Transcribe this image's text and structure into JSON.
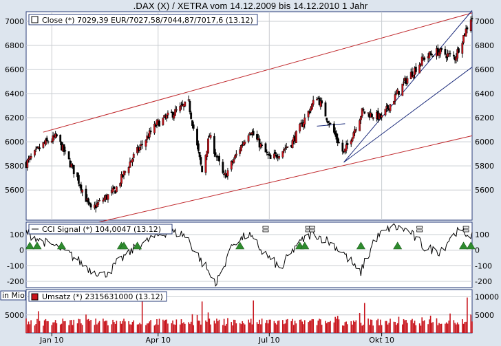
{
  "title": ".DAX (X) / XETRA vom 14.12.2009 bis 14.12.2010 1 Jahr",
  "colors": {
    "background": "#dde5ee",
    "panel": "#ffffff",
    "grid": "#c8ccd0",
    "frame": "#2a3d7a",
    "bull": "#c8141c",
    "bear": "#000000",
    "redline": "#c0282c",
    "blueline": "#1a2a7a",
    "signal": "#2e8b2e",
    "volume": "#c8141c"
  },
  "price_panel": {
    "legend": "Close (*) 7029,39 EUR/7027,58/7044,87/7017,6 (13.12)",
    "y_ticks": [
      "7000",
      "6800",
      "6600",
      "6400",
      "6200",
      "6000",
      "5800",
      "5600"
    ]
  },
  "cci_panel": {
    "legend": "CCI Signal (*) 104,0047 (13.12)",
    "y_ticks_left": [
      "100",
      "0",
      "-100",
      "-200"
    ],
    "y_ticks_right": [
      "100",
      "0",
      "-100",
      "-200"
    ]
  },
  "volume_panel": {
    "legend": "Umsatz (*) 2315631000 (13.12)",
    "unit_label": "in Mio",
    "y_ticks_left": [
      "10000",
      "5000"
    ],
    "y_ticks_right": [
      "10000",
      "5000"
    ]
  },
  "x_ticks": [
    "Jan 10",
    "Apr 10",
    "Jul 10",
    "Okt 10"
  ],
  "chart_data": [
    {
      "type": "candlestick",
      "name": "Close (*)",
      "title": ".DAX (X) / XETRA vom 14.12.2009 bis 14.12.2010 1 Jahr",
      "ylim": [
        5350,
        7080
      ],
      "x_range": [
        "2009-12-14",
        "2010-12-14"
      ],
      "close_path": [
        [
          "2009-12-14",
          5820
        ],
        [
          "2009-12-28",
          5980
        ],
        [
          "2010-01-08",
          6040
        ],
        [
          "2010-01-25",
          5700
        ],
        [
          "2010-02-05",
          5430
        ],
        [
          "2010-02-10",
          5480
        ],
        [
          "2010-02-25",
          5600
        ],
        [
          "2010-03-10",
          5850
        ],
        [
          "2010-03-31",
          6150
        ],
        [
          "2010-04-26",
          6320
        ],
        [
          "2010-05-07",
          5750
        ],
        [
          "2010-05-13",
          6050
        ],
        [
          "2010-05-25",
          5700
        ],
        [
          "2010-06-15",
          6100
        ],
        [
          "2010-07-02",
          5850
        ],
        [
          "2010-07-20",
          6000
        ],
        [
          "2010-08-09",
          6380
        ],
        [
          "2010-08-31",
          5900
        ],
        [
          "2010-09-15",
          6250
        ],
        [
          "2010-10-01",
          6200
        ],
        [
          "2010-10-20",
          6500
        ],
        [
          "2010-11-05",
          6700
        ],
        [
          "2010-11-16",
          6750
        ],
        [
          "2010-11-30",
          6700
        ],
        [
          "2010-12-13",
          7030
        ]
      ],
      "trendlines": [
        {
          "color": "red",
          "from": [
            "2009-12-28",
            6080
          ],
          "to": [
            "2010-12-14",
            7070
          ]
        },
        {
          "color": "red",
          "from": [
            "2010-02-10",
            5330
          ],
          "to": [
            "2010-12-14",
            6050
          ]
        },
        {
          "color": "blue",
          "from": [
            "2010-08-31",
            5830
          ],
          "to": [
            "2010-12-14",
            7090
          ]
        },
        {
          "color": "blue",
          "from": [
            "2010-08-31",
            5830
          ],
          "to": [
            "2010-12-14",
            6620
          ]
        },
        {
          "color": "blue",
          "from": [
            "2010-08-09",
            6130
          ],
          "to": [
            "2010-09-01",
            6150
          ]
        }
      ]
    },
    {
      "type": "line",
      "name": "CCI Signal (*)",
      "ylim": [
        -240,
        180
      ],
      "values_sample": [
        120,
        60,
        20,
        -40,
        -120,
        -160,
        -60,
        20,
        80,
        120,
        100,
        -60,
        -220,
        40,
        100,
        -20,
        -120,
        30,
        110,
        60,
        -20,
        -150,
        80,
        150,
        130,
        20,
        -10,
        120,
        100
      ],
      "signal_markers": {
        "up_triangles": [
          "2009-12-17",
          "2009-12-23",
          "2010-01-12",
          "2010-03-02",
          "2010-03-04",
          "2010-03-15",
          "2010-06-07",
          "2010-07-26",
          "2010-07-30",
          "2010-09-14",
          "2010-10-14",
          "2010-12-07",
          "2010-12-13"
        ],
        "sell_markers": [
          "2010-06-28",
          "2010-08-02",
          "2010-08-05",
          "2010-11-01",
          "2010-12-09"
        ]
      }
    },
    {
      "type": "bar",
      "name": "Umsatz (*)",
      "ylim": [
        0,
        12000
      ],
      "typical_range": [
        2000,
        4000
      ],
      "notable_peaks": [
        [
          "2010-03-19",
          10000
        ],
        [
          "2010-05-07",
          8700
        ],
        [
          "2010-06-18",
          9000
        ],
        [
          "2010-09-17",
          8300
        ],
        [
          "2010-12-10",
          9800
        ]
      ]
    }
  ]
}
